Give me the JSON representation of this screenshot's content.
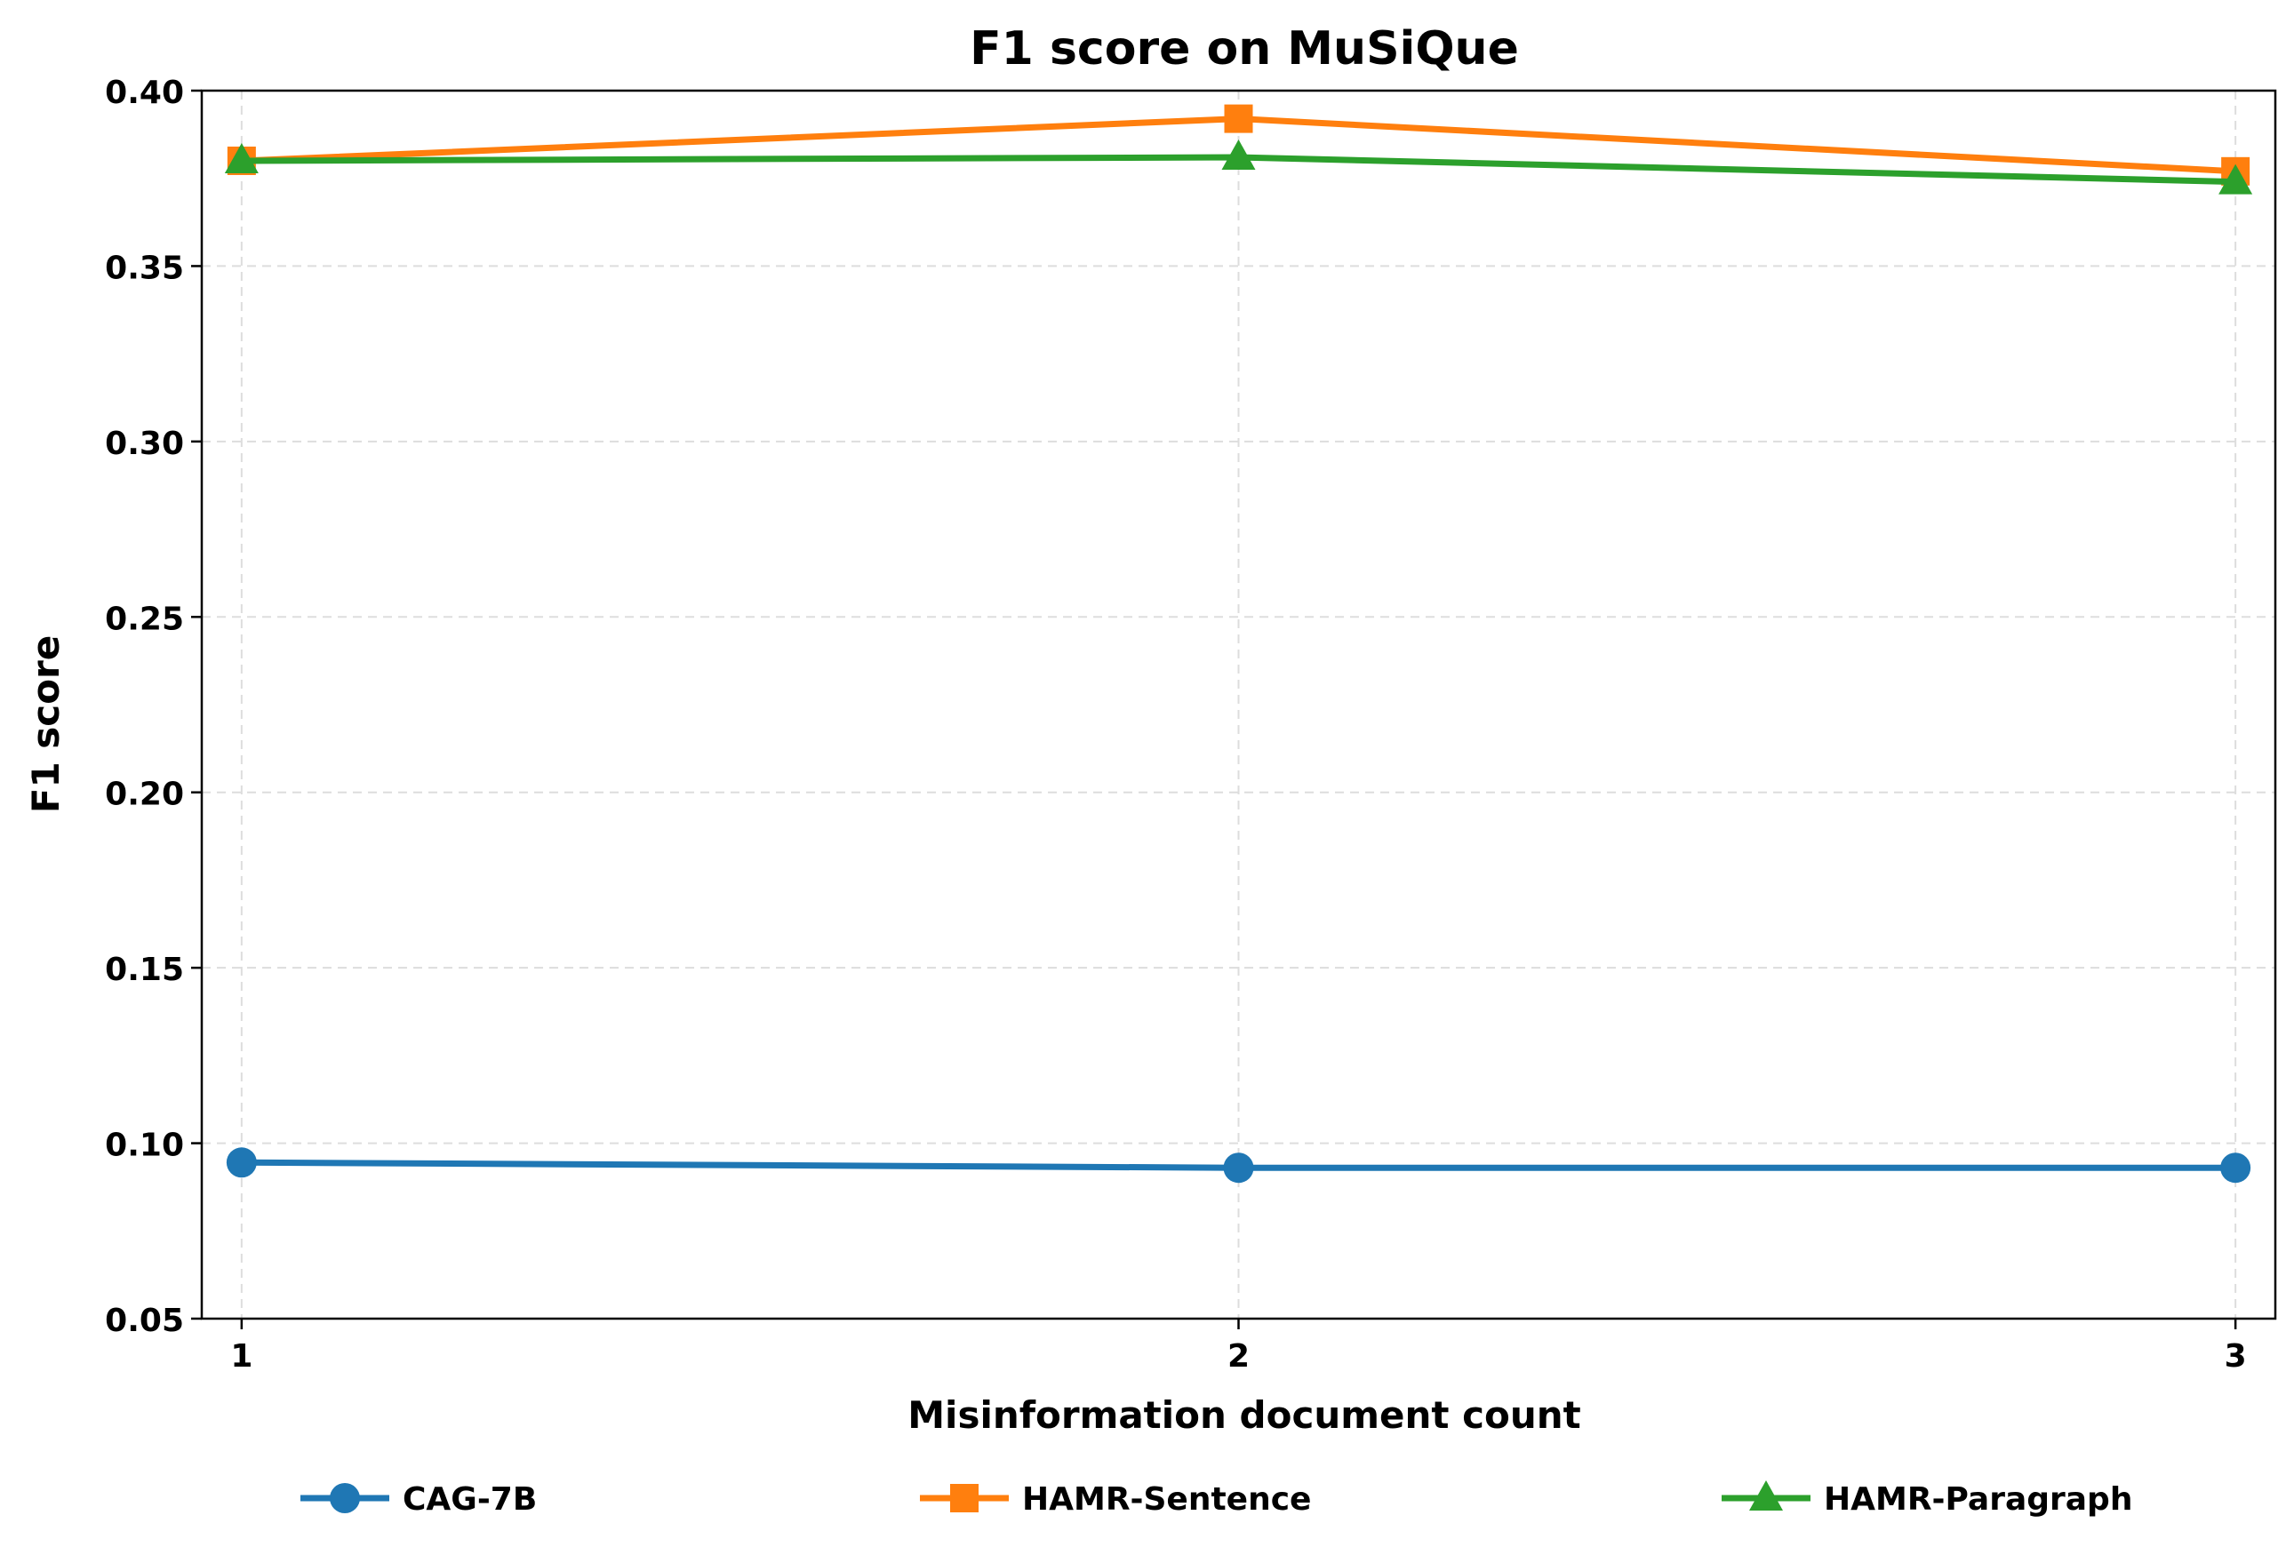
{
  "chart_data": {
    "type": "line",
    "title": "F1 score on MuSiQue",
    "xlabel": "Misinformation document count",
    "ylabel": "F1 score",
    "x": [
      1,
      2,
      3
    ],
    "x_tick_labels": [
      "1",
      "2",
      "3"
    ],
    "xlim": [
      0.96,
      3.04
    ],
    "ylim": [
      0.05,
      0.4
    ],
    "y_ticks": [
      0.05,
      0.1,
      0.15,
      0.2,
      0.25,
      0.3,
      0.35,
      0.4
    ],
    "y_tick_labels": [
      "0.05",
      "0.10",
      "0.15",
      "0.20",
      "0.25",
      "0.30",
      "0.35",
      "0.40"
    ],
    "grid": true,
    "legend_position": "bottom",
    "series": [
      {
        "name": "CAG-7B",
        "values": [
          0.0945,
          0.093,
          0.093
        ],
        "color": "#1f77b4",
        "marker": "circle"
      },
      {
        "name": "HAMR-Sentence",
        "values": [
          0.38,
          0.392,
          0.377
        ],
        "color": "#ff7f0e",
        "marker": "square"
      },
      {
        "name": "HAMR-Paragraph",
        "values": [
          0.38,
          0.381,
          0.374
        ],
        "color": "#2ca02c",
        "marker": "triangle"
      }
    ]
  }
}
